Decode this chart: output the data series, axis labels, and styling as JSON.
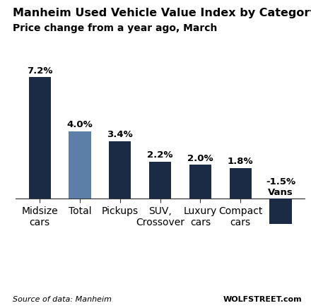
{
  "title": "Manheim Used Vehicle Value Index by Category",
  "subtitle": "Price change from a year ago, March",
  "categories": [
    "Midsize\ncars",
    "Total",
    "Pickups",
    "SUV,\nCrossover",
    "Luxury\ncars",
    "Compact\ncars",
    "Vans"
  ],
  "values": [
    7.2,
    4.0,
    3.4,
    2.2,
    2.0,
    1.8,
    -1.5
  ],
  "bar_colors": [
    "#1b2a45",
    "#5b7fa6",
    "#1b2a45",
    "#1b2a45",
    "#1b2a45",
    "#1b2a45",
    "#1b2a45"
  ],
  "value_labels": [
    "7.2%",
    "4.0%",
    "3.4%",
    "2.2%",
    "2.0%",
    "1.8%",
    "-1.5%\nVans"
  ],
  "source_text": "Source of data: Manheim",
  "watermark_text": "WOLFSTREET.com",
  "bg_color": "#ffffff",
  "title_fontsize": 11.5,
  "subtitle_fontsize": 10,
  "label_fontsize": 9.5,
  "tick_fontsize": 8.5,
  "source_fontsize": 8,
  "ylim": [
    -3.2,
    9.5
  ]
}
